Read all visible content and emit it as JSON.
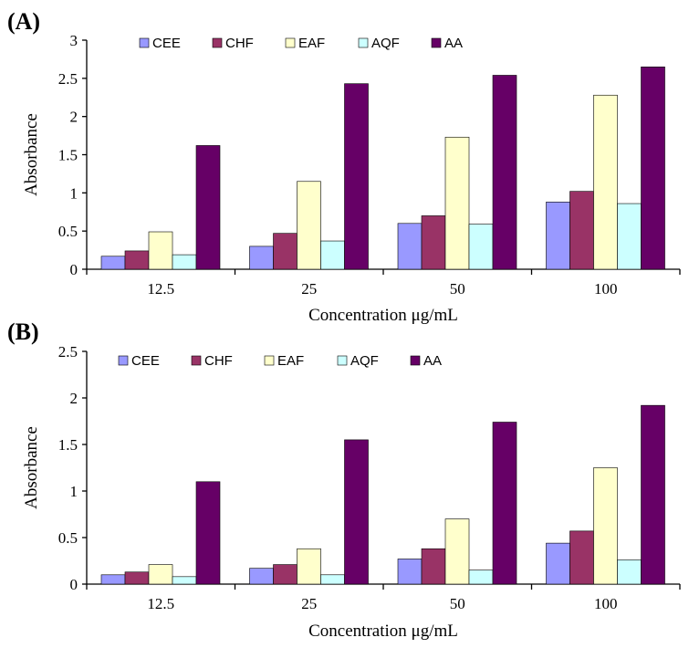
{
  "chart_data": [
    {
      "type": "bar",
      "panel_label": "(A)",
      "categories": [
        "12.5",
        "25",
        "50",
        "100"
      ],
      "xlabel": "Concentration μg/mL",
      "ylabel": "Absorbance",
      "ylim": [
        0,
        3
      ],
      "yticks": [
        "0",
        "0.5",
        "1",
        "1.5",
        "2",
        "2.5",
        "3"
      ],
      "legend_position": "top",
      "series": [
        {
          "name": "CEE",
          "color": "#9999ff",
          "values": [
            0.17,
            0.3,
            0.6,
            0.88
          ]
        },
        {
          "name": "CHF",
          "color": "#993366",
          "values": [
            0.24,
            0.47,
            0.7,
            1.02
          ]
        },
        {
          "name": "EAF",
          "color": "#ffffcc",
          "values": [
            0.49,
            1.15,
            1.73,
            2.28
          ]
        },
        {
          "name": "AQF",
          "color": "#ccffff",
          "values": [
            0.19,
            0.37,
            0.59,
            0.86
          ]
        },
        {
          "name": "AA",
          "color": "#660066",
          "values": [
            1.62,
            2.43,
            2.54,
            2.65
          ]
        }
      ]
    },
    {
      "type": "bar",
      "panel_label": "(B)",
      "categories": [
        "12.5",
        "25",
        "50",
        "100"
      ],
      "xlabel": "Concentration μg/mL",
      "ylabel": "Absorbance",
      "ylim": [
        0,
        2.5
      ],
      "yticks": [
        "0",
        "0.5",
        "1",
        "1.5",
        "2",
        "2.5"
      ],
      "legend_position": "top",
      "series": [
        {
          "name": "CEE",
          "color": "#9999ff",
          "values": [
            0.1,
            0.17,
            0.27,
            0.44
          ]
        },
        {
          "name": "CHF",
          "color": "#993366",
          "values": [
            0.13,
            0.21,
            0.38,
            0.57
          ]
        },
        {
          "name": "EAF",
          "color": "#ffffcc",
          "values": [
            0.21,
            0.38,
            0.7,
            1.25
          ]
        },
        {
          "name": "AQF",
          "color": "#ccffff",
          "values": [
            0.08,
            0.1,
            0.15,
            0.26
          ]
        },
        {
          "name": "AA",
          "color": "#660066",
          "values": [
            1.1,
            1.55,
            1.74,
            1.92
          ]
        }
      ]
    }
  ]
}
